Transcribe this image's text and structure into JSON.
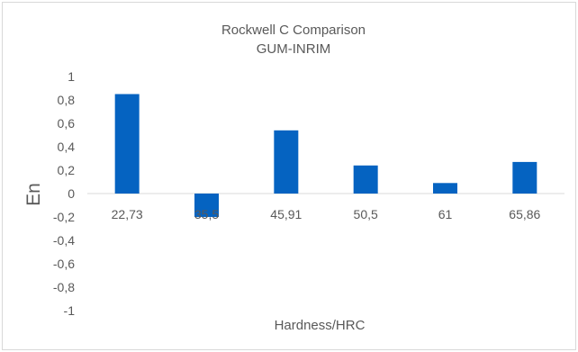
{
  "chart_data": {
    "type": "bar",
    "title": "Rockwell C Comparison",
    "subtitle": "GUM-INRIM",
    "xlabel": "Hardness/HRC",
    "ylabel": "En",
    "categories": [
      "22,73",
      "35,5",
      "45,91",
      "50,5",
      "61",
      "65,86"
    ],
    "series": [
      {
        "values": [
          0.85,
          -0.2,
          0.54,
          0.24,
          0.09,
          0.27
        ]
      }
    ],
    "ylim": [
      -1,
      1
    ],
    "y_ticks": [
      {
        "value": 1,
        "label": "1"
      },
      {
        "value": 0.8,
        "label": "0,8"
      },
      {
        "value": 0.6,
        "label": "0,6"
      },
      {
        "value": 0.4,
        "label": "0,4"
      },
      {
        "value": 0.2,
        "label": "0,2"
      },
      {
        "value": 0,
        "label": "0"
      },
      {
        "value": -0.2,
        "label": "-0,2"
      },
      {
        "value": -0.4,
        "label": "-0,4"
      },
      {
        "value": -0.6,
        "label": "-0,6"
      },
      {
        "value": -0.8,
        "label": "-0,8"
      },
      {
        "value": -1,
        "label": "-1"
      }
    ],
    "grid": false,
    "legend": "none",
    "bar_color": "#0563C1",
    "text_color": "#595959",
    "frame_color": "#D9D9D9",
    "axis_color": "#D9D9D9"
  }
}
